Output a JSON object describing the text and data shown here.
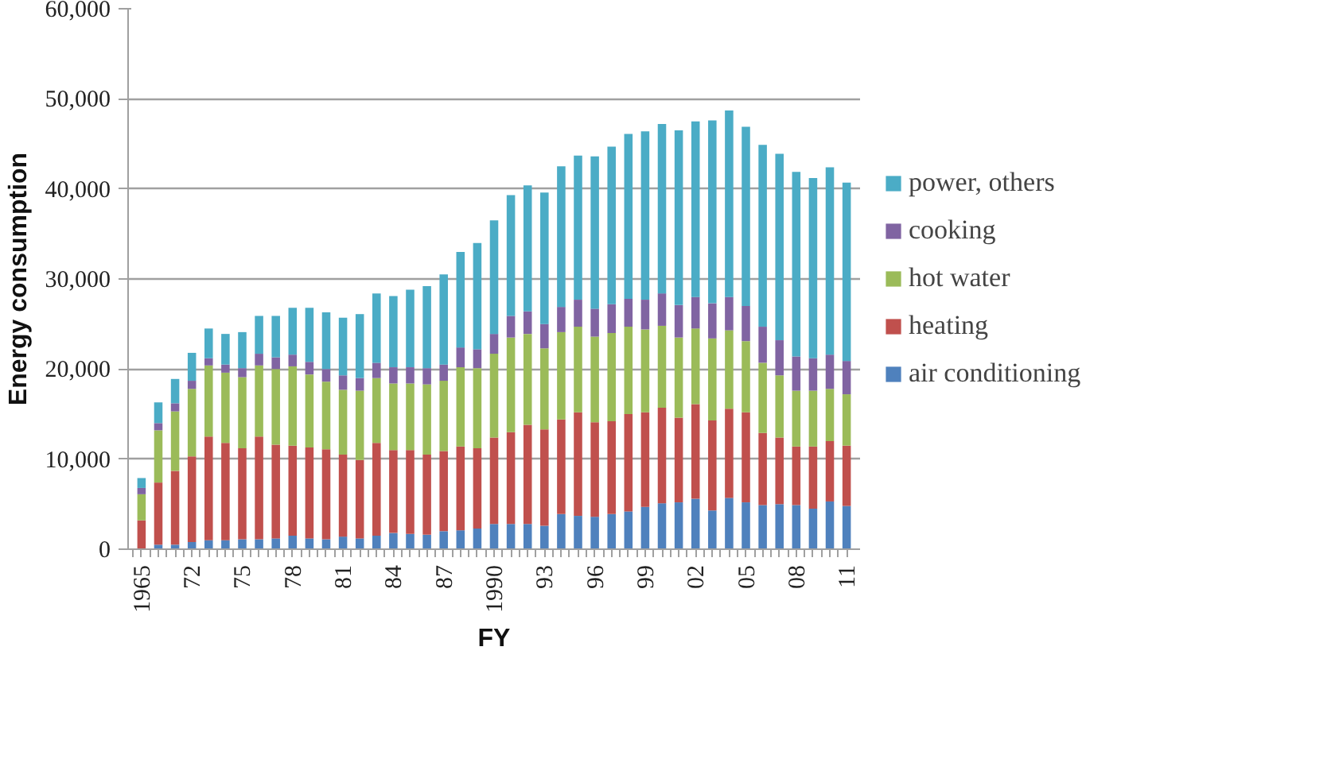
{
  "chart_data": {
    "type": "bar",
    "stacked": true,
    "xlabel": "FY",
    "ylabel": "Energy consumption",
    "categories": [
      "1965",
      null,
      null,
      "72",
      null,
      null,
      "75",
      null,
      null,
      "78",
      null,
      null,
      "81",
      null,
      null,
      "84",
      null,
      null,
      "87",
      null,
      null,
      "1990",
      null,
      null,
      "93",
      null,
      null,
      "96",
      null,
      null,
      "99",
      null,
      null,
      "02",
      null,
      null,
      "05",
      null,
      null,
      "08",
      null,
      null,
      "11"
    ],
    "series": [
      {
        "name": "air conditioning",
        "color": "#4f81bd",
        "values": [
          null,
          500,
          500,
          800,
          1000,
          1000,
          1100,
          1100,
          1200,
          1500,
          1200,
          1100,
          1400,
          1200,
          1500,
          1800,
          1700,
          1600,
          2000,
          2100,
          2300,
          2800,
          2800,
          2800,
          2600,
          3900,
          3700,
          3600,
          3900,
          4200,
          4700,
          5100,
          5200,
          5600,
          4300,
          5700,
          5200,
          4900,
          5000,
          4900,
          4500,
          5300,
          4800
        ]
      },
      {
        "name": "heating",
        "color": "#c0504d",
        "values": [
          3200,
          6900,
          8200,
          9500,
          11500,
          10800,
          10100,
          11400,
          10400,
          10000,
          10100,
          10000,
          9100,
          8700,
          10300,
          9200,
          9300,
          8900,
          8900,
          9300,
          8900,
          9600,
          10200,
          11000,
          10700,
          10500,
          11500,
          10500,
          10300,
          10800,
          10500,
          10600,
          9400,
          10500,
          10000,
          9900,
          10000,
          8000,
          7400,
          6500,
          6900,
          6700,
          6700
        ]
      },
      {
        "name": "hot water",
        "color": "#9bbb59",
        "values": [
          2900,
          5800,
          6600,
          7500,
          7900,
          7800,
          7900,
          7900,
          8400,
          8800,
          8100,
          7500,
          7200,
          7700,
          7200,
          7400,
          7400,
          7800,
          7800,
          8800,
          8900,
          9300,
          10500,
          10100,
          9000,
          9700,
          9500,
          9500,
          9800,
          9700,
          9200,
          9100,
          8900,
          8400,
          9100,
          8700,
          7900,
          7800,
          6900,
          6200,
          6200,
          5800,
          5700
        ]
      },
      {
        "name": "cooking",
        "color": "#8064a2",
        "values": [
          700,
          800,
          900,
          900,
          800,
          900,
          1000,
          1300,
          1300,
          1300,
          1400,
          1400,
          1600,
          1400,
          1700,
          1800,
          1800,
          1800,
          1800,
          2200,
          2100,
          2200,
          2400,
          2500,
          2700,
          2800,
          3000,
          3100,
          3200,
          3100,
          3300,
          3600,
          3600,
          3500,
          3900,
          3700,
          3900,
          4000,
          3900,
          3800,
          3600,
          3800,
          3700
        ]
      },
      {
        "name": "power, others",
        "color": "#4bacc6",
        "values": [
          1100,
          2300,
          2700,
          3100,
          3300,
          3400,
          4000,
          4200,
          4600,
          5200,
          6000,
          6300,
          6400,
          7100,
          7700,
          7900,
          8600,
          9100,
          10000,
          10600,
          11800,
          12600,
          13400,
          14000,
          14600,
          15600,
          16000,
          16900,
          17500,
          18300,
          18700,
          18800,
          19400,
          19500,
          20300,
          20700,
          19900,
          20200,
          20700,
          20500,
          20000,
          20800,
          19800
        ]
      }
    ],
    "ylim": [
      0,
      60000
    ],
    "yticks": [
      {
        "value": 0,
        "label": "0"
      },
      {
        "value": 10000,
        "label": "10,000"
      },
      {
        "value": 20000,
        "label": "20,000"
      },
      {
        "value": 30000,
        "label": "30,000"
      },
      {
        "value": 40000,
        "label": "40,000"
      },
      {
        "value": 50000,
        "label": "50,000"
      },
      {
        "value": 60000,
        "label": "60,000"
      }
    ],
    "grid": "y",
    "legend": "right"
  }
}
